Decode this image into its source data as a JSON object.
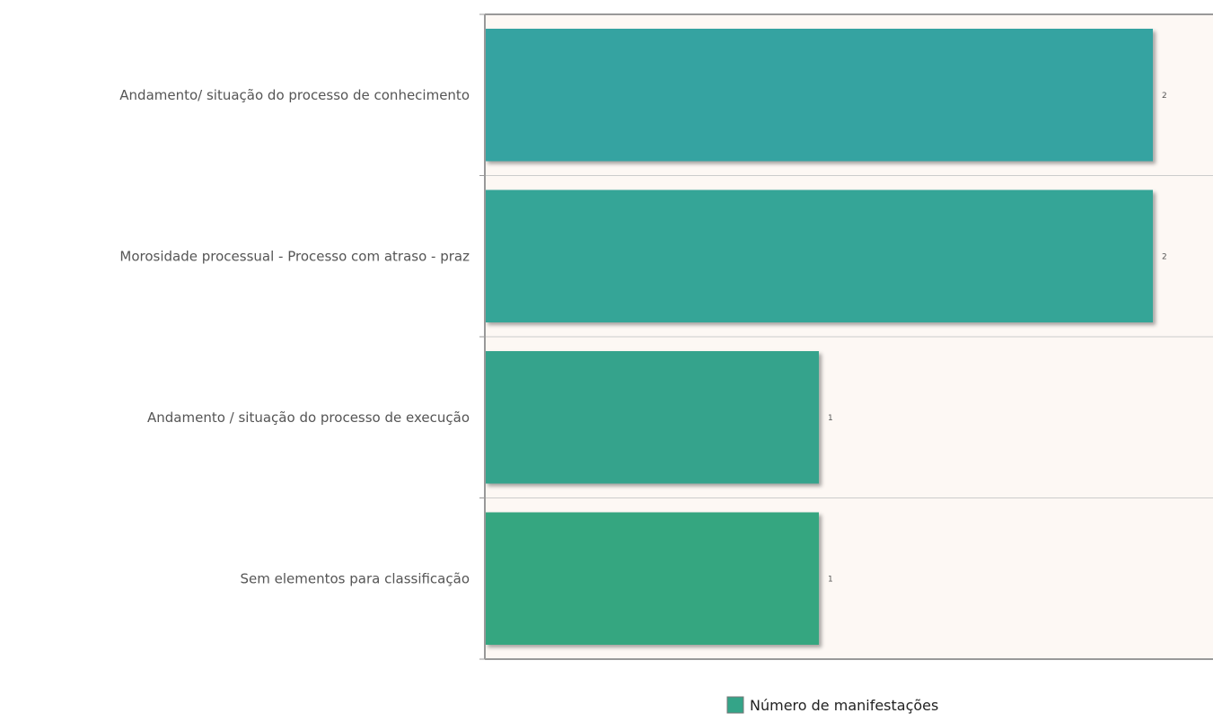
{
  "chart_data": {
    "type": "bar",
    "orientation": "horizontal",
    "categories": [
      "Andamento/ situação do processo de conhecimento",
      "Morosidade processual - Processo com atraso - praz",
      "Andamento / situação do processo de execução",
      "Sem elementos para classificação"
    ],
    "series": [
      {
        "name": "Número de manifestações",
        "values": [
          2,
          2,
          1,
          1
        ]
      }
    ],
    "xlim": [
      0,
      2.18
    ],
    "grid": true,
    "legend_position": "bottom-center",
    "show_value_labels": true
  },
  "colors": {
    "plot_background": "#fdf8f4",
    "axis": "#999999",
    "grid": "#cccccc",
    "bar_colors": [
      "#34a3a1",
      "#35a597",
      "#35a38c",
      "#35a680"
    ],
    "legend_swatch": "#34a488"
  }
}
